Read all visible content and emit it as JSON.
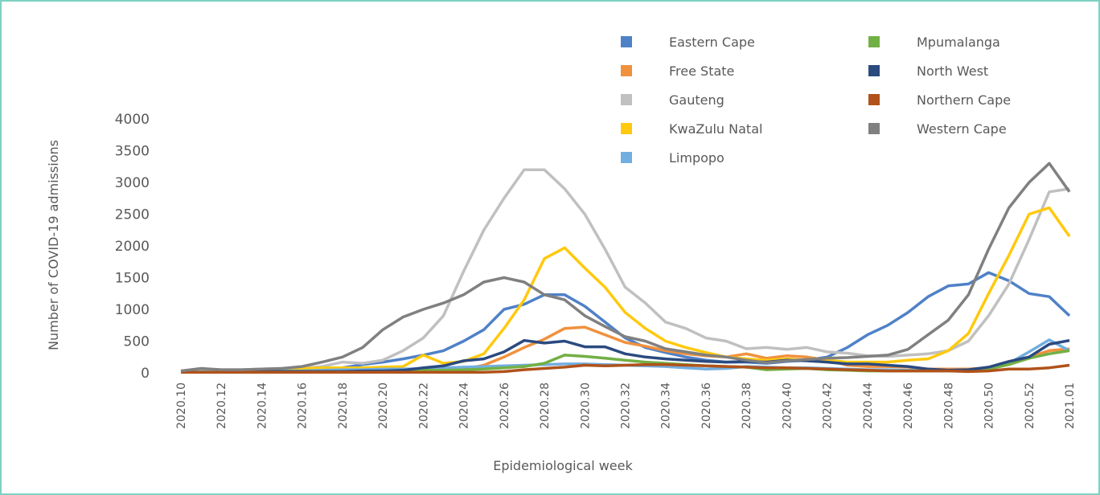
{
  "chart_data": {
    "type": "line",
    "y_label": "Number of COVID-19 admissions",
    "x_label": "Epidemiological week",
    "categories": [
      "2020.10",
      null,
      "2020.12",
      null,
      "2020.14",
      null,
      "2020.16",
      null,
      "2020.18",
      null,
      "2020.20",
      null,
      "2020.22",
      null,
      "2020.24",
      null,
      "2020.26",
      null,
      "2020.28",
      null,
      "2020.30",
      null,
      "2020.32",
      null,
      "2020.34",
      null,
      "2020.36",
      null,
      "2020.38",
      null,
      "2020.40",
      null,
      "2020.42",
      null,
      "2020.44",
      null,
      "2020.46",
      null,
      "2020.48",
      null,
      "2020.50",
      null,
      "2020.52",
      null,
      "2021.01"
    ],
    "ylim": [
      0,
      4000
    ],
    "yticks": [
      0,
      500,
      1000,
      1500,
      2000,
      2500,
      3000,
      3500,
      4000
    ],
    "grid": false,
    "series": [
      {
        "name": "Eastern Cape",
        "color": "#4f81c7",
        "values": [
          20,
          40,
          30,
          40,
          50,
          50,
          60,
          70,
          80,
          130,
          170,
          220,
          280,
          350,
          500,
          680,
          1000,
          1080,
          1230,
          1230,
          1050,
          800,
          550,
          400,
          320,
          250,
          200,
          170,
          170,
          150,
          180,
          200,
          250,
          400,
          600,
          750,
          950,
          1200,
          1370,
          1400,
          1580,
          1450,
          1250,
          1200,
          900
        ]
      },
      {
        "name": "Free State",
        "color": "#f0913d",
        "values": [
          20,
          30,
          20,
          30,
          30,
          30,
          30,
          40,
          40,
          30,
          40,
          40,
          40,
          50,
          60,
          120,
          250,
          400,
          530,
          700,
          720,
          600,
          480,
          420,
          350,
          300,
          270,
          250,
          300,
          230,
          270,
          250,
          200,
          120,
          100,
          100,
          90,
          60,
          60,
          60,
          80,
          150,
          250,
          350,
          380
        ]
      },
      {
        "name": "Gauteng",
        "color": "#c0c0c0",
        "values": [
          30,
          60,
          50,
          50,
          60,
          70,
          70,
          100,
          170,
          150,
          200,
          350,
          550,
          900,
          1600,
          2250,
          2750,
          3200,
          3200,
          2900,
          2500,
          1950,
          1350,
          1100,
          800,
          700,
          550,
          500,
          380,
          400,
          370,
          400,
          330,
          310,
          270,
          260,
          280,
          300,
          350,
          500,
          900,
          1400,
          2100,
          2850,
          2900
        ]
      },
      {
        "name": "KwaZulu Natal",
        "color": "#ffc90e",
        "values": [
          20,
          30,
          30,
          40,
          50,
          60,
          70,
          80,
          80,
          80,
          90,
          100,
          280,
          150,
          180,
          300,
          700,
          1150,
          1800,
          1970,
          1650,
          1350,
          950,
          700,
          500,
          400,
          320,
          250,
          220,
          200,
          220,
          200,
          200,
          170,
          170,
          170,
          200,
          220,
          350,
          620,
          1250,
          1850,
          2500,
          2600,
          2150
        ]
      },
      {
        "name": "Limpopo",
        "color": "#72aee0",
        "values": [
          10,
          20,
          20,
          20,
          30,
          30,
          30,
          40,
          50,
          50,
          60,
          60,
          70,
          80,
          90,
          100,
          110,
          120,
          130,
          140,
          140,
          130,
          120,
          110,
          100,
          80,
          60,
          70,
          100,
          90,
          80,
          80,
          70,
          60,
          50,
          50,
          40,
          40,
          40,
          50,
          60,
          150,
          330,
          520,
          350
        ]
      },
      {
        "name": "Mpumalanga",
        "color": "#72b045",
        "values": [
          10,
          10,
          10,
          20,
          20,
          20,
          20,
          20,
          20,
          20,
          30,
          30,
          40,
          40,
          50,
          60,
          80,
          100,
          150,
          280,
          260,
          230,
          200,
          170,
          150,
          130,
          110,
          100,
          90,
          50,
          60,
          70,
          50,
          40,
          30,
          30,
          30,
          30,
          30,
          40,
          60,
          130,
          230,
          300,
          350
        ]
      },
      {
        "name": "North West",
        "color": "#2a4a80",
        "values": [
          10,
          10,
          10,
          10,
          20,
          20,
          20,
          20,
          20,
          30,
          30,
          40,
          80,
          110,
          190,
          220,
          330,
          510,
          470,
          500,
          410,
          410,
          300,
          250,
          220,
          200,
          180,
          170,
          180,
          170,
          200,
          190,
          170,
          140,
          140,
          120,
          100,
          60,
          40,
          50,
          90,
          180,
          250,
          450,
          510
        ]
      },
      {
        "name": "Northern Cape",
        "color": "#b0521a",
        "values": [
          10,
          10,
          10,
          10,
          10,
          10,
          10,
          10,
          10,
          10,
          10,
          10,
          10,
          10,
          10,
          10,
          20,
          50,
          70,
          90,
          120,
          110,
          120,
          130,
          130,
          120,
          110,
          100,
          90,
          80,
          80,
          70,
          60,
          50,
          40,
          30,
          30,
          30,
          30,
          20,
          30,
          60,
          60,
          80,
          120
        ]
      },
      {
        "name": "Western Cape",
        "color": "#808080",
        "values": [
          30,
          70,
          50,
          50,
          60,
          70,
          100,
          170,
          250,
          400,
          680,
          880,
          1000,
          1100,
          1230,
          1430,
          1500,
          1430,
          1230,
          1150,
          900,
          730,
          570,
          500,
          380,
          330,
          280,
          250,
          200,
          160,
          190,
          210,
          230,
          240,
          260,
          280,
          370,
          600,
          830,
          1230,
          1950,
          2600,
          3000,
          3300,
          2850
        ]
      }
    ]
  }
}
